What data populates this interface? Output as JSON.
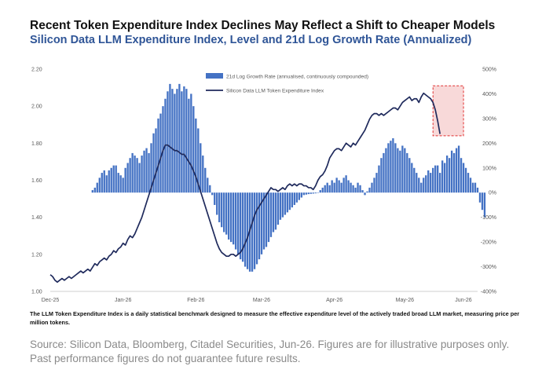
{
  "header": {
    "title": "Recent Token Expenditure Index Declines May Reflect a Shift to Cheaper Models",
    "subtitle": "Silicon Data LLM Expenditure Index, Level and 21d Log Growth Rate (Annualized)"
  },
  "footer": {
    "note": "The LLM Token Expenditure Index is a daily statistical benchmark designed to measure the effective expenditure level of the actively traded broad LLM market, measuring price per million tokens.",
    "source": "Source: Silicon Data, Bloomberg, Citadel Securities, Jun-26. Figures are for illustrative purposes only. Past performance figures do not guarantee future results."
  },
  "colors": {
    "bars": "#4472c4",
    "line": "#1f2a5c",
    "highlight_border": "#e03030",
    "highlight_fill": "#f6cccc"
  },
  "chart_data": {
    "type": "bar+line",
    "x_start": "Dec-25",
    "x_ticks": [
      "Dec-25",
      "Jan-26",
      "Feb-26",
      "Mar-26",
      "Apr-26",
      "May-26",
      "Jun-26"
    ],
    "left_axis": {
      "ylim": [
        1.0,
        2.2
      ],
      "ticks": [
        "1.00",
        "1.20",
        "1.40",
        "1.60",
        "1.80",
        "2.00",
        "2.20"
      ]
    },
    "right_axis": {
      "ylim": [
        -400,
        500
      ],
      "ticks": [
        "-400%",
        "-300%",
        "-200%",
        "-100%",
        "0%",
        "100%",
        "200%",
        "300%",
        "400%",
        "500%"
      ]
    },
    "legend": {
      "position": "top-center"
    },
    "series": [
      {
        "name": "21d Log Growth Rate (annualised, continuously compounded)",
        "type": "bar",
        "axis": "right",
        "start_day": 18,
        "values": [
          10,
          20,
          40,
          60,
          80,
          90,
          70,
          90,
          100,
          110,
          110,
          80,
          70,
          60,
          100,
          120,
          140,
          160,
          150,
          140,
          120,
          150,
          170,
          180,
          160,
          200,
          240,
          260,
          300,
          320,
          350,
          380,
          410,
          440,
          420,
          400,
          420,
          440,
          410,
          430,
          420,
          380,
          400,
          350,
          300,
          260,
          200,
          150,
          100,
          60,
          30,
          -10,
          -50,
          -90,
          -120,
          -140,
          -160,
          -170,
          -190,
          -200,
          -210,
          -230,
          -250,
          -270,
          -280,
          -300,
          -310,
          -320,
          -320,
          -310,
          -290,
          -270,
          -250,
          -230,
          -220,
          -200,
          -180,
          -160,
          -150,
          -130,
          -110,
          -100,
          -90,
          -80,
          -70,
          -60,
          -50,
          -40,
          -30,
          -20,
          -10,
          -8,
          -6,
          -5,
          -4,
          -3,
          0,
          10,
          20,
          30,
          40,
          30,
          50,
          40,
          60,
          50,
          40,
          60,
          70,
          50,
          40,
          30,
          20,
          40,
          30,
          10,
          -10,
          5,
          20,
          40,
          60,
          80,
          110,
          140,
          160,
          180,
          200,
          210,
          220,
          200,
          180,
          170,
          190,
          180,
          160,
          140,
          120,
          100,
          80,
          60,
          40,
          60,
          70,
          90,
          80,
          100,
          110,
          110,
          80,
          130,
          120,
          150,
          140,
          170,
          160,
          180,
          190,
          140,
          120,
          100,
          80,
          60,
          40,
          40,
          20,
          -40,
          -70,
          -100
        ]
      },
      {
        "name": "Silicon Data LLM Token Expenditure Index",
        "type": "line",
        "axis": "left",
        "start_day": 0,
        "values": [
          1.09,
          1.08,
          1.06,
          1.05,
          1.06,
          1.07,
          1.06,
          1.07,
          1.08,
          1.07,
          1.08,
          1.09,
          1.1,
          1.11,
          1.1,
          1.11,
          1.12,
          1.11,
          1.13,
          1.15,
          1.14,
          1.16,
          1.17,
          1.18,
          1.17,
          1.19,
          1.2,
          1.22,
          1.21,
          1.23,
          1.24,
          1.26,
          1.25,
          1.28,
          1.3,
          1.29,
          1.31,
          1.34,
          1.37,
          1.4,
          1.44,
          1.48,
          1.52,
          1.56,
          1.6,
          1.64,
          1.68,
          1.72,
          1.76,
          1.79,
          1.79,
          1.78,
          1.77,
          1.76,
          1.76,
          1.75,
          1.74,
          1.74,
          1.72,
          1.7,
          1.68,
          1.65,
          1.62,
          1.58,
          1.54,
          1.5,
          1.46,
          1.42,
          1.38,
          1.34,
          1.3,
          1.26,
          1.23,
          1.21,
          1.2,
          1.19,
          1.19,
          1.2,
          1.2,
          1.19,
          1.2,
          1.21,
          1.23,
          1.26,
          1.29,
          1.33,
          1.37,
          1.41,
          1.44,
          1.46,
          1.48,
          1.5,
          1.52,
          1.54,
          1.56,
          1.55,
          1.55,
          1.54,
          1.55,
          1.56,
          1.55,
          1.57,
          1.58,
          1.57,
          1.58,
          1.57,
          1.58,
          1.58,
          1.57,
          1.57,
          1.56,
          1.56,
          1.55,
          1.57,
          1.6,
          1.62,
          1.63,
          1.65,
          1.68,
          1.72,
          1.74,
          1.76,
          1.77,
          1.77,
          1.76,
          1.78,
          1.8,
          1.79,
          1.78,
          1.8,
          1.79,
          1.81,
          1.83,
          1.85,
          1.87,
          1.9,
          1.93,
          1.95,
          1.96,
          1.96,
          1.95,
          1.96,
          1.95,
          1.96,
          1.97,
          1.98,
          1.99,
          1.99,
          1.98,
          2.0,
          2.02,
          2.03,
          2.04,
          2.05,
          2.03,
          2.04,
          2.04,
          2.02,
          2.05,
          2.07,
          2.06,
          2.05,
          2.04,
          2.02,
          1.98,
          1.92,
          1.85
        ]
      }
    ],
    "highlight": {
      "x_range": [
        163,
        176
      ],
      "y_range": [
        1.84,
        2.11
      ],
      "axis": "left"
    }
  }
}
